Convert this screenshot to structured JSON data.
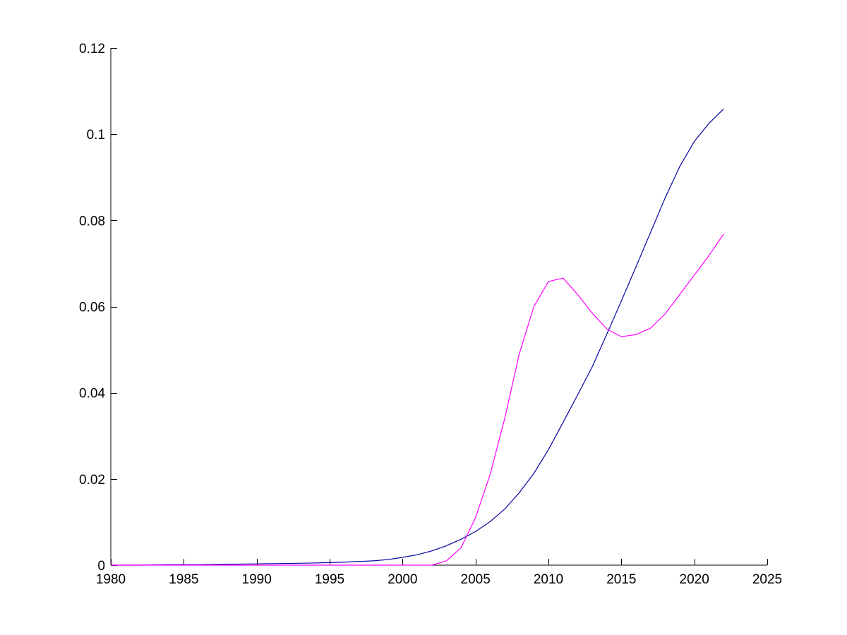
{
  "chart_data": {
    "type": "line",
    "title": "",
    "xlabel": "",
    "ylabel": "",
    "xlim": [
      1980,
      2025
    ],
    "ylim": [
      0,
      0.12
    ],
    "xticks": [
      1980,
      1985,
      1990,
      1995,
      2000,
      2005,
      2010,
      2015,
      2020,
      2025
    ],
    "xtick_labels": [
      "1980",
      "1985",
      "1990",
      "1995",
      "2000",
      "2005",
      "2010",
      "2015",
      "2020",
      "2025"
    ],
    "yticks": [
      0,
      0.02,
      0.04,
      0.06,
      0.08,
      0.1,
      0.12
    ],
    "ytick_labels": [
      "0",
      "0.02",
      "0.04",
      "0.06",
      "0.08",
      "0.1",
      "0.12"
    ],
    "grid": false,
    "legend": "none",
    "series": [
      {
        "color": "#0000a0",
        "x": [
          1980,
          1982,
          1984,
          1986,
          1988,
          1990,
          1992,
          1994,
          1996,
          1998,
          1999,
          2000,
          2001,
          2002,
          2003,
          2004,
          2005,
          2006,
          2007,
          2008,
          2009,
          2010,
          2011,
          2012,
          2013,
          2014,
          2015,
          2016,
          2017,
          2018,
          2019,
          2020,
          2021,
          2022
        ],
        "y": [
          0,
          0,
          0.0001,
          0.0001,
          0.0002,
          0.0003,
          0.0004,
          0.0005,
          0.0007,
          0.001,
          0.0013,
          0.0018,
          0.0024,
          0.0033,
          0.0045,
          0.006,
          0.0078,
          0.0101,
          0.013,
          0.0168,
          0.0213,
          0.0268,
          0.0331,
          0.0395,
          0.046,
          0.0536,
          0.0613,
          0.0692,
          0.0772,
          0.0852,
          0.0925,
          0.0983,
          0.1025,
          0.1058
        ]
      },
      {
        "color": "#ff00ff",
        "x": [
          1980,
          1985,
          1990,
          1995,
          2000,
          2002,
          2003,
          2004,
          2005,
          2006,
          2007,
          2008,
          2009,
          2010,
          2011,
          2012,
          2013,
          2014,
          2015,
          2016,
          2017,
          2018,
          2019,
          2020,
          2021,
          2022
        ],
        "y": [
          0,
          0,
          0,
          0,
          0,
          0,
          0.001,
          0.004,
          0.011,
          0.021,
          0.034,
          0.049,
          0.06,
          0.0658,
          0.0666,
          0.0628,
          0.0585,
          0.0548,
          0.053,
          0.0535,
          0.055,
          0.0583,
          0.0628,
          0.0673,
          0.0718,
          0.0768
        ]
      }
    ]
  }
}
